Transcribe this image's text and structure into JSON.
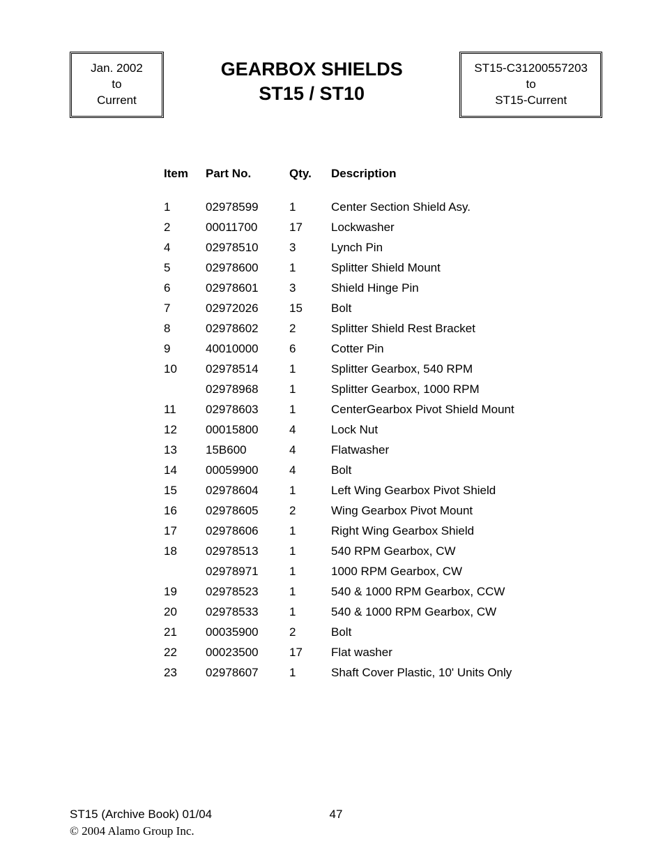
{
  "header": {
    "left_box": {
      "line1": "Jan. 2002",
      "line2": "to",
      "line3": "Current"
    },
    "title_line1": "GEARBOX SHIELDS",
    "title_line2": "ST15 / ST10",
    "right_box": {
      "line1": "ST15-C31200557203",
      "line2": "to",
      "line3": "ST15-Current"
    }
  },
  "table": {
    "columns": [
      "Item",
      "Part No.",
      "Qty.",
      "Description"
    ],
    "rows": [
      [
        "1",
        "02978599",
        "1",
        "Center Section Shield Asy."
      ],
      [
        "2",
        "00011700",
        "17",
        "Lockwasher"
      ],
      [
        "4",
        "02978510",
        "3",
        "Lynch Pin"
      ],
      [
        "5",
        "02978600",
        "1",
        "Splitter Shield Mount"
      ],
      [
        "6",
        "02978601",
        "3",
        "Shield Hinge Pin"
      ],
      [
        "7",
        "02972026",
        "15",
        "Bolt"
      ],
      [
        "8",
        "02978602",
        "2",
        "Splitter Shield Rest Bracket"
      ],
      [
        "9",
        "40010000",
        "6",
        "Cotter Pin"
      ],
      [
        "10",
        "02978514",
        "1",
        "Splitter Gearbox, 540 RPM"
      ],
      [
        "",
        "02978968",
        "1",
        "Splitter Gearbox, 1000 RPM"
      ],
      [
        "11",
        "02978603",
        "1",
        "CenterGearbox Pivot Shield Mount"
      ],
      [
        "12",
        "00015800",
        "4",
        "Lock Nut"
      ],
      [
        "13",
        "15B600",
        "4",
        "Flatwasher"
      ],
      [
        "14",
        "00059900",
        "4",
        "Bolt"
      ],
      [
        "15",
        "02978604",
        "1",
        "Left Wing Gearbox Pivot Shield"
      ],
      [
        "16",
        "02978605",
        "2",
        "Wing Gearbox Pivot Mount"
      ],
      [
        "17",
        "02978606",
        "1",
        "Right Wing Gearbox Shield"
      ],
      [
        "18",
        "02978513",
        "1",
        "540 RPM Gearbox, CW"
      ],
      [
        "",
        "02978971",
        "1",
        "1000 RPM Gearbox, CW"
      ],
      [
        "19",
        "02978523",
        "1",
        "540 & 1000 RPM Gearbox, CCW"
      ],
      [
        "20",
        "02978533",
        "1",
        "540 & 1000 RPM Gearbox, CW"
      ],
      [
        "21",
        "00035900",
        "2",
        "Bolt"
      ],
      [
        "22",
        "00023500",
        "17",
        "Flat washer"
      ],
      [
        "23",
        "02978607",
        "1",
        "Shaft Cover Plastic, 10' Units Only"
      ]
    ]
  },
  "footer": {
    "left_line": "ST15  (Archive Book) 01/04",
    "page_number": "47",
    "copyright": "© 2004 Alamo Group Inc."
  }
}
